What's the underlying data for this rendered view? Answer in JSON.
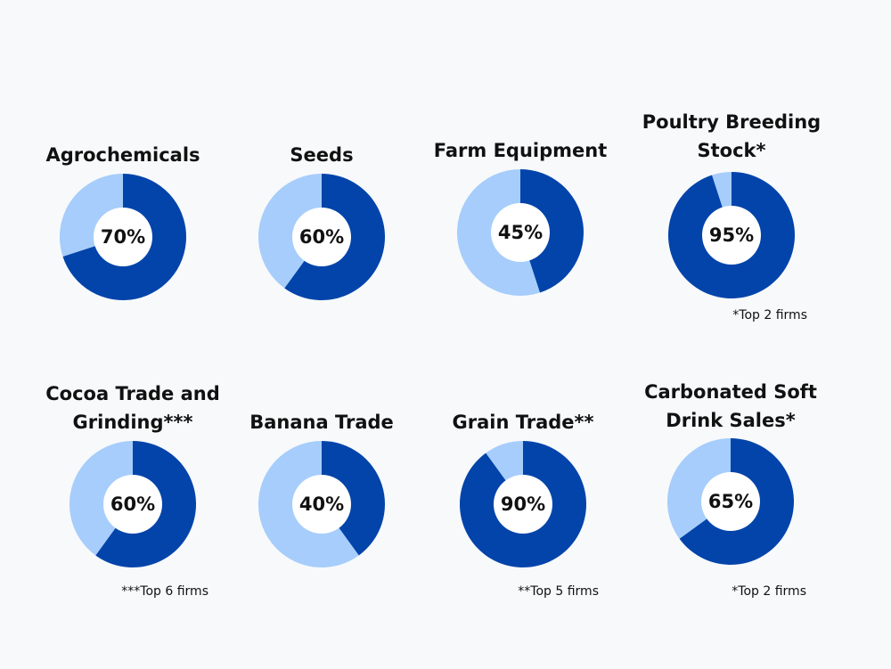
{
  "colors": {
    "dark": "#0244aa",
    "light": "#a6cdfb",
    "hole": "#ffffff"
  },
  "chart_data": [
    {
      "type": "pie",
      "title": "Agrochemicals",
      "value": 70,
      "label": "70%",
      "note": ""
    },
    {
      "type": "pie",
      "title": "Seeds",
      "value": 60,
      "label": "60%",
      "note": ""
    },
    {
      "type": "pie",
      "title": "Farm Equipment",
      "value": 45,
      "label": "45%",
      "note": ""
    },
    {
      "type": "pie",
      "title": "Poultry Breeding Stock*",
      "value": 95,
      "label": "95%",
      "note": "*Top 2 firms"
    },
    {
      "type": "pie",
      "title": "Cocoa Trade and Grinding***",
      "value": 60,
      "label": "60%",
      "note": "***Top 6 firms"
    },
    {
      "type": "pie",
      "title": "Banana Trade",
      "value": 40,
      "label": "40%",
      "note": ""
    },
    {
      "type": "pie",
      "title": "Grain Trade**",
      "value": 90,
      "label": "90%",
      "note": "**Top 5 firms"
    },
    {
      "type": "pie",
      "title": "Carbonated Soft Drink Sales*",
      "value": 65,
      "label": "65%",
      "note": "*Top 2 firms"
    }
  ]
}
